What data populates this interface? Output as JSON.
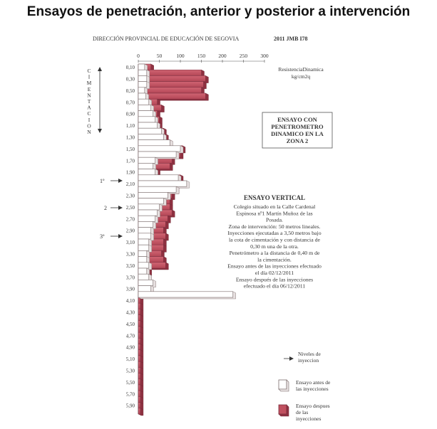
{
  "title": "Ensayos de penetración, anterior y posterior a intervención",
  "header": {
    "institution": "DIRECCIÓN PROVINCIAL DE EDUCACIÓN DE SEGOVIA",
    "code": "2011 JMB I78"
  },
  "units": {
    "line1": "ResistenciaDinamica",
    "line2": "kg/cm2q"
  },
  "side_label": "CIMENTACION",
  "level_markers": [
    "1º",
    "2",
    "3º"
  ],
  "method_box": [
    "ENSAYO CON",
    "PENETROMETRO",
    "DINAMICO EN LA",
    "ZONA 2"
  ],
  "test_description": {
    "heading": "ENSAYO VERTICAL",
    "lines": [
      "Colegio situado en la Calle Cardenal",
      "Espinosa nº1 Martín Muñoz de las",
      "Posada.",
      "Zona de intervención: 50 metros lineales.",
      "Inyecciones ejecutadas a 3,50 metros bajo",
      "la cota de cimentación y con distancia de",
      "0,30 m una de la otra.",
      "Penetrómetro a la distancia de 0,40 m de",
      "la cimentación.",
      "Ensayo antes de las inyecciones efectuado",
      "el día 02/12/2011",
      "Ensayo después de las inyecciones",
      "efectuado el día 06/12/2011"
    ]
  },
  "legend": {
    "levels_line1": "Niveles de",
    "levels_line2": "inyeccion",
    "before_line1": "Ensayo antes de",
    "before_line2": "las inyecciones",
    "after_line1": "Ensayo despues",
    "after_line2": "de las",
    "after_line3": "inyecciones"
  },
  "colors": {
    "before": "#ffffff",
    "after": "#c0505f",
    "after_dark": "#8e3040",
    "outline": "#7a6b6b"
  },
  "chart_data": {
    "type": "bar",
    "orientation": "horizontal",
    "xlim": [
      0,
      300
    ],
    "x_ticks": [
      0,
      50,
      100,
      150,
      200,
      250,
      300
    ],
    "depth_labels": [
      "0,10",
      "0,30",
      "0,50",
      "0,70",
      "0,90",
      "1,10",
      "1,30",
      "1,50",
      "1,70",
      "1,90",
      "2,10",
      "2,30",
      "2,50",
      "2,70",
      "2,90",
      "3,10",
      "3,30",
      "3,50",
      "3,70",
      "3,90",
      "4,10",
      "4,30",
      "4,50",
      "4,70",
      "4,90",
      "5,10",
      "5,30",
      "5,50",
      "5,70",
      "5,90"
    ],
    "series": [
      {
        "name": "Ensayo antes de las inyecciones",
        "depths": [
          0.1,
          0.2,
          0.3,
          0.4,
          0.5,
          0.6,
          0.7,
          0.8,
          0.9,
          1.0,
          1.1,
          1.2,
          1.3,
          1.4,
          1.5,
          1.6,
          1.7,
          1.8,
          1.9,
          2.0,
          2.1,
          2.2,
          2.3,
          2.4,
          2.5,
          2.6,
          2.7,
          2.8,
          2.9,
          3.0,
          3.1,
          3.2,
          3.3,
          3.4,
          3.5,
          3.6,
          3.7,
          3.8,
          3.9,
          4.0
        ],
        "values": [
          15,
          20,
          20,
          20,
          15,
          18,
          25,
          30,
          35,
          40,
          45,
          55,
          60,
          75,
          100,
          90,
          40,
          35,
          40,
          95,
          115,
          90,
          70,
          60,
          50,
          45,
          40,
          35,
          30,
          30,
          25,
          25,
          20,
          20,
          25,
          20,
          25,
          35,
          30,
          225
        ]
      },
      {
        "name": "Ensayo despues de las inyecciones",
        "depths": [
          0.1,
          0.2,
          0.3,
          0.4,
          0.5,
          0.6,
          0.7,
          0.8,
          0.9,
          1.0,
          1.1,
          1.2,
          1.3,
          1.4,
          1.5,
          1.6,
          1.7,
          1.8,
          1.9,
          2.0,
          2.1,
          2.2,
          2.3,
          2.4,
          2.5,
          2.6,
          2.7,
          2.8,
          2.9,
          3.0,
          3.1,
          3.2,
          3.3,
          3.4,
          3.5,
          3.6,
          3.7,
          3.8,
          3.9,
          4.0,
          4.1,
          4.2,
          4.3,
          4.4,
          4.5,
          4.6,
          4.7,
          4.8,
          4.9,
          5.0,
          5.1,
          5.2,
          5.3,
          5.4,
          5.5,
          5.6,
          5.7,
          5.8,
          5.9,
          6.0
        ],
        "values": [
          30,
          150,
          160,
          155,
          150,
          160,
          45,
          55,
          45,
          50,
          50,
          60,
          65,
          75,
          105,
          100,
          80,
          75,
          45,
          100,
          110,
          90,
          80,
          75,
          75,
          80,
          70,
          65,
          60,
          65,
          60,
          60,
          55,
          60,
          65,
          25,
          25,
          25,
          25,
          5,
          5,
          5,
          5,
          5,
          5,
          5,
          5,
          5,
          5,
          5,
          5,
          5,
          5,
          5,
          5,
          5,
          5,
          5,
          5,
          5
        ]
      }
    ]
  }
}
